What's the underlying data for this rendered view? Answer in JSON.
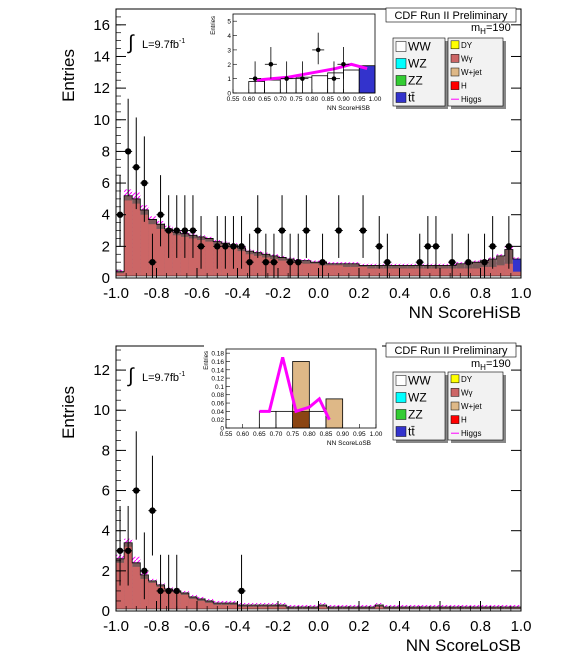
{
  "experiment_label": "CDF Run II Preliminary",
  "mass_label": {
    "prefix": "m",
    "sub": "H",
    "suffix": "=190"
  },
  "lumi_label": {
    "text": "L=9.7fb",
    "sup": "-1"
  },
  "colors": {
    "WW": "#ffffff",
    "WZ": "#00ffff",
    "ZZ": "#33cc33",
    "tt": "#3333cc",
    "DY": "#ffff00",
    "Wg": "#cc6666",
    "Wjet": "#deb887",
    "H": "#ff0000",
    "Higgs": "#ff00ff"
  },
  "legend": {
    "col1": [
      {
        "key": "WW",
        "label": "WW"
      },
      {
        "key": "WZ",
        "label": "WZ"
      },
      {
        "key": "ZZ",
        "label": "ZZ"
      },
      {
        "key": "tt",
        "label": "tt̄"
      }
    ],
    "col2": [
      {
        "key": "DY",
        "label": "DY"
      },
      {
        "key": "Wg",
        "label": "Wγ"
      },
      {
        "key": "Wjet",
        "label": "W+jet"
      },
      {
        "key": "H",
        "label": "H"
      },
      {
        "key": "Higgs",
        "label": "Higgs",
        "line": true
      }
    ]
  },
  "chart_data": [
    {
      "type": "bar",
      "xlabel": "NN ScoreHiSB",
      "ylabel": "Entries",
      "xlim": [
        -1.0,
        1.0
      ],
      "ylim": [
        0,
        17
      ],
      "yticks": [
        0,
        2,
        4,
        6,
        8,
        10,
        12,
        14,
        16
      ],
      "xticks": [
        -1.0,
        -0.8,
        -0.6,
        -0.4,
        -0.2,
        0.0,
        0.2,
        0.4,
        0.6,
        0.8,
        1.0
      ],
      "bin_width": 0.04,
      "bkg_wg": [
        0.3,
        4.9,
        4.7,
        4.0,
        3.4,
        3.1,
        2.9,
        2.7,
        2.6,
        2.5,
        2.4,
        2.3,
        2.1,
        2.0,
        1.9,
        1.7,
        1.5,
        1.4,
        1.3,
        1.2,
        1.1,
        1.0,
        1.0,
        0.9,
        0.9,
        0.8,
        0.8,
        0.8,
        0.7,
        0.7,
        0.7,
        0.6,
        0.6,
        0.6,
        0.6,
        0.6,
        0.6,
        0.6,
        0.6,
        0.6,
        0.6,
        0.6,
        0.6,
        0.6,
        0.6,
        0.7,
        0.7,
        0.8,
        0.9,
        0.4
      ],
      "bkg_total": [
        0.4,
        5.2,
        5.0,
        4.3,
        3.7,
        3.4,
        3.1,
        2.9,
        2.8,
        2.7,
        2.6,
        2.5,
        2.3,
        2.2,
        2.1,
        1.9,
        1.7,
        1.6,
        1.5,
        1.4,
        1.3,
        1.2,
        1.1,
        1.1,
        1.0,
        1.0,
        0.9,
        0.9,
        0.9,
        0.9,
        0.8,
        0.8,
        0.8,
        0.8,
        0.8,
        0.8,
        0.8,
        0.8,
        0.8,
        0.8,
        0.8,
        0.8,
        0.9,
        0.9,
        1.0,
        1.1,
        1.2,
        1.4,
        1.8,
        1.2
      ],
      "signal_total": [
        0.5,
        5.6,
        5.4,
        4.6,
        3.9,
        3.6,
        3.3,
        3.0,
        2.9,
        2.8,
        2.7,
        2.6,
        2.4,
        2.3,
        2.2,
        2.0,
        1.8,
        1.7,
        1.6,
        1.5,
        1.4,
        1.3,
        1.2,
        1.2,
        1.1,
        1.1,
        1.0,
        1.0,
        1.0,
        1.0,
        0.9,
        0.9,
        0.9,
        0.9,
        0.9,
        0.9,
        0.9,
        0.9,
        0.9,
        0.9,
        0.9,
        0.9,
        1.0,
        1.0,
        1.1,
        1.2,
        1.3,
        1.5,
        2.0,
        1.3
      ],
      "data_points": [
        [
          -0.98,
          4
        ],
        [
          -0.94,
          8
        ],
        [
          -0.9,
          7
        ],
        [
          -0.86,
          6
        ],
        [
          -0.82,
          1
        ],
        [
          -0.78,
          4
        ],
        [
          -0.74,
          3
        ],
        [
          -0.7,
          3
        ],
        [
          -0.66,
          3
        ],
        [
          -0.62,
          3
        ],
        [
          -0.58,
          2
        ],
        [
          -0.5,
          2
        ],
        [
          -0.46,
          2
        ],
        [
          -0.42,
          2
        ],
        [
          -0.38,
          2
        ],
        [
          -0.34,
          1
        ],
        [
          -0.3,
          3
        ],
        [
          -0.26,
          1
        ],
        [
          -0.22,
          1
        ],
        [
          -0.18,
          3
        ],
        [
          -0.14,
          1
        ],
        [
          -0.1,
          1
        ],
        [
          -0.06,
          3
        ],
        [
          0.02,
          1
        ],
        [
          0.1,
          3
        ],
        [
          0.22,
          3
        ],
        [
          0.3,
          2
        ],
        [
          0.34,
          1
        ],
        [
          0.5,
          1
        ],
        [
          0.54,
          2
        ],
        [
          0.58,
          2
        ],
        [
          0.66,
          1
        ],
        [
          0.74,
          1
        ],
        [
          0.82,
          1
        ],
        [
          0.86,
          2
        ],
        [
          0.94,
          2
        ]
      ],
      "inset": {
        "xlabel": "NN ScoreHiSB",
        "ylabel": "Entries",
        "xlim": [
          0.55,
          1.0
        ],
        "ylim": [
          0,
          5.5
        ],
        "yticks": [
          0,
          1,
          2,
          3,
          4,
          5
        ],
        "xticks": [
          "0.55",
          "0.60",
          "0.65",
          "0.70",
          "0.75",
          "0.80",
          "0.85",
          "0.90",
          "0.95",
          "1.00"
        ],
        "bin_edges": [
          0.6,
          0.65,
          0.7,
          0.75,
          0.8,
          0.85,
          0.9,
          0.95,
          1.0
        ],
        "bkg_total": [
          0.8,
          0.9,
          1.0,
          1.1,
          1.2,
          1.4,
          1.6,
          1.9
        ],
        "signal_line": [
          0.9,
          1.0,
          1.1,
          1.3,
          1.5,
          1.7,
          2.0,
          1.7
        ],
        "data_points": [
          [
            0.62,
            1
          ],
          [
            0.67,
            2
          ],
          [
            0.72,
            1
          ],
          [
            0.77,
            1
          ],
          [
            0.82,
            3
          ],
          [
            0.87,
            1
          ],
          [
            0.9,
            2
          ]
        ]
      }
    },
    {
      "type": "bar",
      "xlabel": "NN ScoreLoSB",
      "ylabel": "Entries",
      "xlim": [
        -1.0,
        1.0
      ],
      "ylim": [
        0,
        13.2
      ],
      "yticks": [
        0,
        2,
        4,
        6,
        8,
        10,
        12
      ],
      "xticks": [
        -1.0,
        -0.8,
        -0.6,
        -0.4,
        -0.2,
        0.0,
        0.2,
        0.4,
        0.6,
        0.8,
        1.0
      ],
      "bin_width": 0.04,
      "bkg_wg": [
        2.4,
        3.2,
        2.2,
        1.6,
        1.4,
        1.2,
        1.0,
        0.9,
        0.8,
        0.6,
        0.5,
        0.4,
        0.3,
        0.3,
        0.3,
        0.2,
        0.2,
        0.2,
        0.2,
        0.2,
        0.2,
        0.1,
        0.1,
        0.1,
        0.1,
        0.2,
        0.1,
        0.1,
        0.1,
        0.1,
        0.1,
        0.1,
        0.2,
        0.1,
        0.1,
        0.1,
        0.1,
        0.1,
        0.1,
        0.1,
        0.1,
        0.1,
        0.1,
        0.1,
        0.1,
        0.1,
        0.1,
        0.1,
        0.1,
        0.1
      ],
      "bkg_total": [
        2.6,
        3.4,
        2.4,
        1.8,
        1.5,
        1.3,
        1.1,
        1.0,
        0.9,
        0.7,
        0.6,
        0.5,
        0.4,
        0.4,
        0.4,
        0.3,
        0.3,
        0.3,
        0.3,
        0.3,
        0.3,
        0.2,
        0.2,
        0.2,
        0.2,
        0.3,
        0.2,
        0.2,
        0.2,
        0.2,
        0.2,
        0.2,
        0.3,
        0.2,
        0.2,
        0.2,
        0.2,
        0.2,
        0.2,
        0.2,
        0.2,
        0.2,
        0.2,
        0.2,
        0.2,
        0.2,
        0.2,
        0.2,
        0.2,
        0.2
      ],
      "signal_total": [
        2.8,
        3.6,
        2.7,
        2.0,
        1.6,
        1.4,
        1.2,
        1.1,
        1.0,
        0.8,
        0.7,
        0.6,
        0.5,
        0.5,
        0.5,
        0.4,
        0.4,
        0.4,
        0.4,
        0.4,
        0.4,
        0.3,
        0.3,
        0.3,
        0.3,
        0.4,
        0.3,
        0.3,
        0.3,
        0.3,
        0.3,
        0.3,
        0.4,
        0.3,
        0.3,
        0.3,
        0.3,
        0.3,
        0.3,
        0.3,
        0.3,
        0.3,
        0.3,
        0.3,
        0.3,
        0.3,
        0.3,
        0.3,
        0.3,
        0.3
      ],
      "data_points": [
        [
          -0.98,
          3
        ],
        [
          -0.94,
          3
        ],
        [
          -0.9,
          6
        ],
        [
          -0.86,
          2
        ],
        [
          -0.82,
          5
        ],
        [
          -0.78,
          1
        ],
        [
          -0.74,
          1
        ],
        [
          -0.7,
          1
        ],
        [
          -0.38,
          1
        ]
      ],
      "inset": {
        "xlabel": "NN ScoreLoSB",
        "ylabel": "Entries",
        "xlim": [
          0.55,
          1.0
        ],
        "ylim": [
          0,
          0.19
        ],
        "yticks": [
          0,
          0.02,
          0.04,
          0.06,
          0.08,
          0.1,
          0.12,
          0.14,
          0.16,
          0.18
        ],
        "ytick_labels": [
          "0",
          "0.02",
          "0.04",
          "0.06",
          "0.08",
          "0.1",
          "0.12",
          "0.14",
          "0.16",
          "0.18"
        ],
        "xticks": [
          "0.55",
          "0.60",
          "0.65",
          "0.70",
          "0.75",
          "0.80",
          "0.85",
          "0.90",
          "0.95",
          "1.00"
        ],
        "bin_edges": [
          0.65,
          0.7,
          0.75,
          0.8,
          0.85,
          0.9
        ],
        "bkg_total": [
          0.04,
          0.04,
          0.16,
          0.04,
          0.07
        ],
        "signal_line": [
          0.04,
          0.04,
          0.17,
          0.04,
          0.05,
          0.07,
          0.02
        ],
        "signal_x": [
          0.65,
          0.68,
          0.72,
          0.76,
          0.8,
          0.83,
          0.86
        ]
      }
    }
  ]
}
